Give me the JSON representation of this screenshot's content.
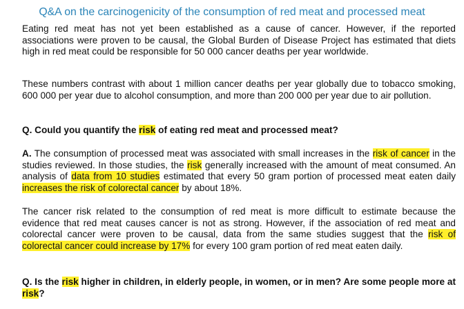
{
  "title": "Q&A on the carcinogenicity of the consumption of red meat and processed meat",
  "p1": "Eating red meat has not yet been established as a cause of cancer. However, if the reported associations were proven to be causal, the Global Burden of Disease Project has estimated that diets high in red meat could be responsible for 50 000 cancer deaths per year worldwide.",
  "p2": "These numbers contrast with about 1 million cancer deaths per year globally due to tobacco smoking, 600 000 per year due to alcohol consumption, and more than 200 000 per year due to air pollution.",
  "q1": {
    "before": "Q. Could you quantify the ",
    "highlight": "risk",
    "after": " of eating red meat and processed meat?"
  },
  "a1": {
    "lead": "A.",
    "s1": " The consumption of processed meat was associated with small increases in the ",
    "h1": "risk of cancer",
    "s2": " in the studies reviewed. In those studies, the ",
    "h2": "risk",
    "s3": " generally increased with the amount of meat consumed. An analysis of ",
    "h3": "data from 10 studies",
    "s4": " estimated that every 50 gram portion of processed meat eaten daily ",
    "h4": "increases the risk of colorectal cancer",
    "s5": " by about 18%."
  },
  "p4": {
    "s1": "The cancer risk related to the consumption of red meat is more difficult to estimate because the evidence that red meat causes cancer is not as strong. However, if the association of red meat and colorectal cancer were proven to be causal, data from the same studies suggest that the ",
    "h1": "risk of colorectal cancer could increase by 17%",
    "s2": " for every 100 gram portion of red meat eaten daily."
  },
  "q2": {
    "before": "Q. Is the ",
    "h1": "risk",
    "mid": " higher in children, in elderly people, in women, or in men? Are some people more at ",
    "h2": "risk",
    "after": "?"
  },
  "colors": {
    "title": "#2a84b8",
    "highlight": "#ffef2a",
    "text": "#111111"
  }
}
